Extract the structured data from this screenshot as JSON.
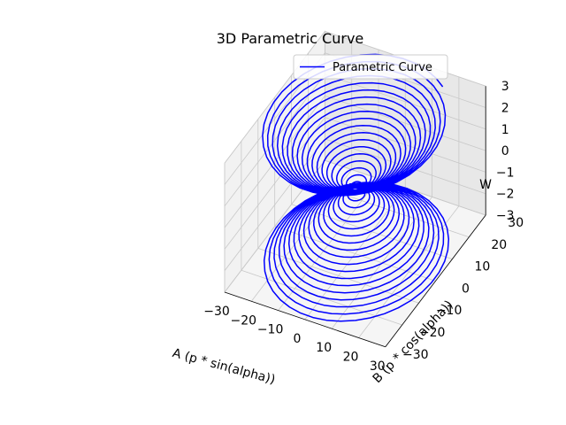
{
  "chart_data": {
    "type": "line",
    "projection": "3d",
    "title": "3D Parametric Curve",
    "xlabel": "A (p * sin(alpha))",
    "ylabel": "B (p * cos(alpha))",
    "zlabel": "W",
    "xlim": [
      -30,
      30
    ],
    "ylim": [
      -30,
      30
    ],
    "zlim": [
      -3,
      3
    ],
    "xticks": [
      "−30",
      "−20",
      "−10",
      "0",
      "10",
      "20",
      "30"
    ],
    "yticks": [
      "−30",
      "−20",
      "−10",
      "0",
      "10",
      "20",
      "30"
    ],
    "zticks": [
      "−3",
      "−2",
      "−1",
      "0",
      "1",
      "2",
      "3"
    ],
    "grid": true,
    "legend_position": "upper-right",
    "series": [
      {
        "name": "Parametric Curve",
        "color": "#0000ff",
        "equation": {
          "w_range": [
            -3,
            3
          ],
          "p_of_w": "sqrt(1 + 100 * w^2)",
          "alpha_of_w": "40 * w",
          "x": "p * sin(alpha)",
          "y": "p * cos(alpha)",
          "z": "w"
        },
        "samples": 1500
      }
    ]
  }
}
